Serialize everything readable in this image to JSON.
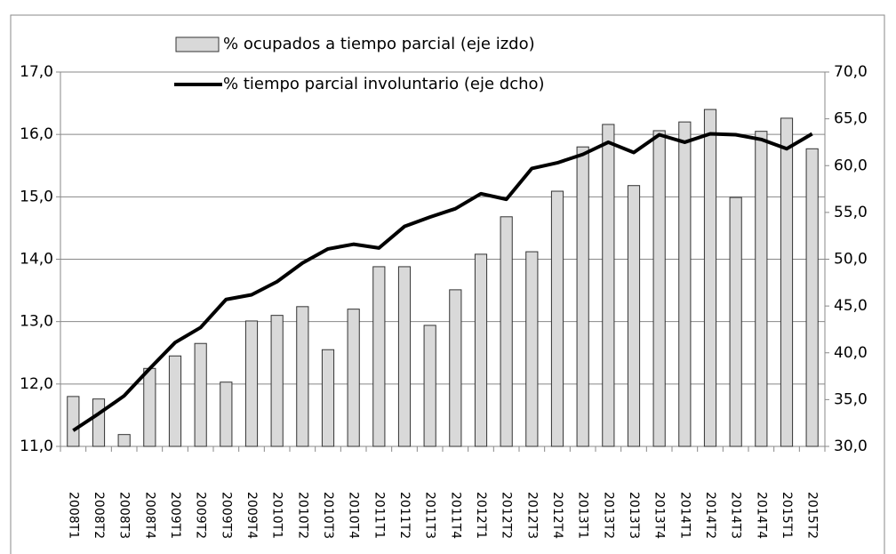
{
  "chart_data": {
    "type": "bar-line",
    "categories": [
      "2008T1",
      "2008T2",
      "2008T3",
      "2008T4",
      "2009T1",
      "2009T2",
      "2009T3",
      "2009T4",
      "2010T1",
      "2010T2",
      "2010T3",
      "2010T4",
      "2011T1",
      "2011T2",
      "2011T3",
      "2011T4",
      "2012T1",
      "2012T2",
      "2012T3",
      "2012T4",
      "2013T1",
      "2013T2",
      "2013T3",
      "2013T4",
      "2014T1",
      "2014T2",
      "2014T3",
      "2014T4",
      "2015T1",
      "2015T2"
    ],
    "series": [
      {
        "name": "% ocupados a tiempo parcial (eje izdo)",
        "type": "bar",
        "color": "#d9d9d9",
        "values": [
          11.8,
          11.76,
          11.19,
          12.25,
          12.45,
          12.65,
          12.03,
          13.01,
          13.1,
          13.24,
          12.55,
          13.2,
          13.88,
          13.88,
          12.94,
          13.51,
          14.08,
          14.68,
          14.12,
          15.09,
          15.8,
          16.16,
          15.18,
          16.06,
          16.2,
          16.4,
          14.99,
          16.05,
          16.26,
          15.77
        ]
      },
      {
        "name": "% tiempo parcial involuntario (eje dcho)",
        "type": "line",
        "axis": "y2",
        "color": "#000000",
        "values": [
          31.7,
          33.5,
          35.4,
          38.3,
          41.1,
          42.7,
          45.7,
          46.2,
          47.6,
          49.6,
          51.1,
          51.6,
          51.2,
          53.5,
          54.5,
          55.4,
          57.0,
          56.4,
          59.7,
          60.3,
          61.2,
          62.5,
          61.4,
          63.3,
          62.5,
          63.4,
          63.3,
          62.8,
          61.8,
          63.4
        ]
      }
    ],
    "ylim": [
      11,
      17
    ],
    "yticks": [
      {
        "value": 11,
        "label": "11,0"
      },
      {
        "value": 12,
        "label": "12,0"
      },
      {
        "value": 13,
        "label": "13,0"
      },
      {
        "value": 14,
        "label": "14,0"
      },
      {
        "value": 15,
        "label": "15,0"
      },
      {
        "value": 16,
        "label": "16,0"
      },
      {
        "value": 17,
        "label": "17,0"
      }
    ],
    "y2lim": [
      30,
      70
    ],
    "y2ticks": [
      {
        "value": 30,
        "label": "30,0"
      },
      {
        "value": 35,
        "label": "35,0"
      },
      {
        "value": 40,
        "label": "40,0"
      },
      {
        "value": 45,
        "label": "45,0"
      },
      {
        "value": 50,
        "label": "50,0"
      },
      {
        "value": 55,
        "label": "55,0"
      },
      {
        "value": 60,
        "label": "60,0"
      },
      {
        "value": 65,
        "label": "65,0"
      },
      {
        "value": 70,
        "label": "70,0"
      }
    ],
    "grid": true
  }
}
